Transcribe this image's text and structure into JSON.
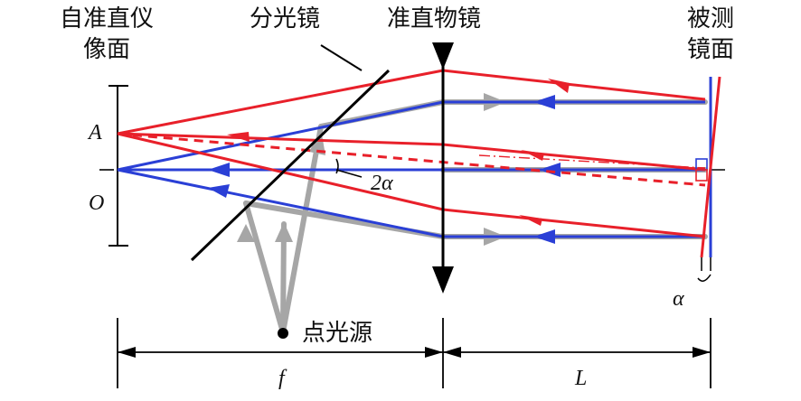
{
  "labels": {
    "autocollimator_image_plane_line1": "自准直仪",
    "autocollimator_image_plane_line2": "像面",
    "beam_splitter": "分光镜",
    "collimating_objective": "准直物镜",
    "measured_mirror_line1": "被测",
    "measured_mirror_line2": "镜面",
    "point_A": "A",
    "point_O": "O",
    "angle_2alpha": "2α",
    "point_source": "点光源",
    "alpha": "α",
    "focal_length": "f",
    "distance_L": "L"
  },
  "colors": {
    "reflected_ray": "#e8202a",
    "incident_ray": "#2a3fd6",
    "source_ray": "#a6a6a6",
    "line": "#000000"
  }
}
